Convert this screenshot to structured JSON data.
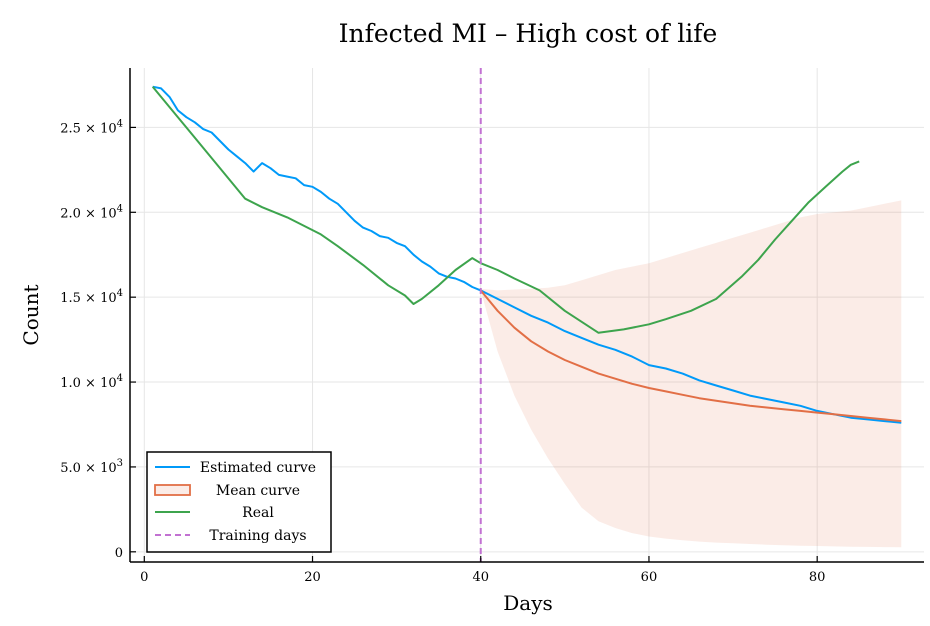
{
  "chart_data": {
    "type": "line",
    "title": "Infected MI – High cost of life",
    "xlabel": "Days",
    "ylabel": "Count",
    "xlim": [
      -1.7,
      92.7
    ],
    "ylim": [
      -600,
      28500
    ],
    "x_ticks": [
      0,
      20,
      40,
      60,
      80
    ],
    "x_tick_labels": [
      "0",
      "20",
      "40",
      "60",
      "80"
    ],
    "y_ticks": [
      0,
      5000,
      10000,
      15000,
      20000,
      25000
    ],
    "y_tick_labels": [
      {
        "mantissa": "0",
        "exp": ""
      },
      {
        "mantissa": "5.0 × 10",
        "exp": "3"
      },
      {
        "mantissa": "1.0 × 10",
        "exp": "4"
      },
      {
        "mantissa": "1.5 × 10",
        "exp": "4"
      },
      {
        "mantissa": "2.0 × 10",
        "exp": "4"
      },
      {
        "mantissa": "2.5 × 10",
        "exp": "4"
      }
    ],
    "grid": true,
    "legend_position": "bottom-left",
    "series": [
      {
        "name": "Estimated curve",
        "color": "#009af9",
        "x": [
          1,
          2,
          3,
          4,
          5,
          6,
          7,
          8,
          9,
          10,
          11,
          12,
          13,
          14,
          15,
          16,
          17,
          18,
          19,
          20,
          21,
          22,
          23,
          24,
          25,
          26,
          27,
          28,
          29,
          30,
          31,
          32,
          33,
          34,
          35,
          36,
          37,
          38,
          39,
          40,
          42,
          44,
          46,
          48,
          50,
          52,
          54,
          56,
          58,
          60,
          62,
          64,
          66,
          68,
          70,
          72,
          74,
          76,
          78,
          80,
          82,
          84,
          86,
          88,
          90
        ],
        "y": [
          27400,
          27300,
          26800,
          26000,
          25600,
          25300,
          24900,
          24700,
          24200,
          23700,
          23300,
          22900,
          22400,
          22900,
          22600,
          22200,
          22100,
          22000,
          21600,
          21500,
          21200,
          20800,
          20500,
          20000,
          19500,
          19100,
          18900,
          18600,
          18500,
          18200,
          18000,
          17500,
          17100,
          16800,
          16400,
          16200,
          16100,
          15900,
          15600,
          15400,
          14900,
          14400,
          13900,
          13500,
          13000,
          12600,
          12200,
          11900,
          11500,
          11000,
          10800,
          10500,
          10100,
          9800,
          9500,
          9200,
          9000,
          8800,
          8600,
          8300,
          8100,
          7900,
          7800,
          7700,
          7600
        ]
      },
      {
        "name": "Mean curve",
        "color": "#e26f46",
        "x": [
          40,
          42,
          44,
          46,
          48,
          50,
          52,
          54,
          56,
          58,
          60,
          62,
          64,
          66,
          68,
          70,
          72,
          74,
          76,
          78,
          80,
          82,
          84,
          86,
          88,
          90
        ],
        "y": [
          15400,
          14200,
          13200,
          12400,
          11800,
          11300,
          10900,
          10500,
          10200,
          9900,
          9650,
          9450,
          9250,
          9050,
          8900,
          8750,
          8600,
          8500,
          8400,
          8300,
          8200,
          8100,
          8000,
          7900,
          7800,
          7700
        ]
      },
      {
        "name": "Real",
        "color": "#3da44d",
        "x": [
          1,
          4,
          8,
          12,
          14,
          17,
          19,
          21,
          23,
          26,
          29,
          31,
          32,
          33,
          35,
          37,
          39,
          40,
          42,
          44,
          47,
          50,
          54,
          57,
          60,
          62,
          65,
          68,
          71,
          73,
          75,
          77,
          79,
          81,
          83,
          84,
          85
        ],
        "y": [
          27400,
          25600,
          23200,
          20800,
          20300,
          19700,
          19200,
          18700,
          18000,
          16900,
          15700,
          15100,
          14600,
          14900,
          15700,
          16600,
          17300,
          17000,
          16600,
          16100,
          15400,
          14200,
          12900,
          13100,
          13400,
          13700,
          14200,
          14900,
          16200,
          17200,
          18400,
          19500,
          20600,
          21500,
          22400,
          22800,
          23000
        ]
      },
      {
        "name": "Training days",
        "color": "#c271d2",
        "x_value": 40
      }
    ],
    "band": {
      "color": "#e26f46",
      "x": [
        40,
        42,
        44,
        46,
        48,
        50,
        52,
        54,
        56,
        58,
        60,
        62,
        64,
        66,
        68,
        70,
        72,
        74,
        76,
        78,
        80,
        82,
        84,
        86,
        88,
        90
      ],
      "upper": [
        15500,
        15400,
        15450,
        15500,
        15550,
        15700,
        16000,
        16300,
        16600,
        16800,
        17000,
        17300,
        17600,
        17900,
        18200,
        18500,
        18800,
        19100,
        19400,
        19700,
        19900,
        20000,
        20100,
        20300,
        20500,
        20700
      ],
      "lower": [
        15400,
        11800,
        9200,
        7200,
        5500,
        4000,
        2600,
        1800,
        1400,
        1100,
        900,
        780,
        680,
        600,
        540,
        500,
        460,
        420,
        390,
        360,
        340,
        320,
        300,
        290,
        280,
        270
      ]
    }
  }
}
